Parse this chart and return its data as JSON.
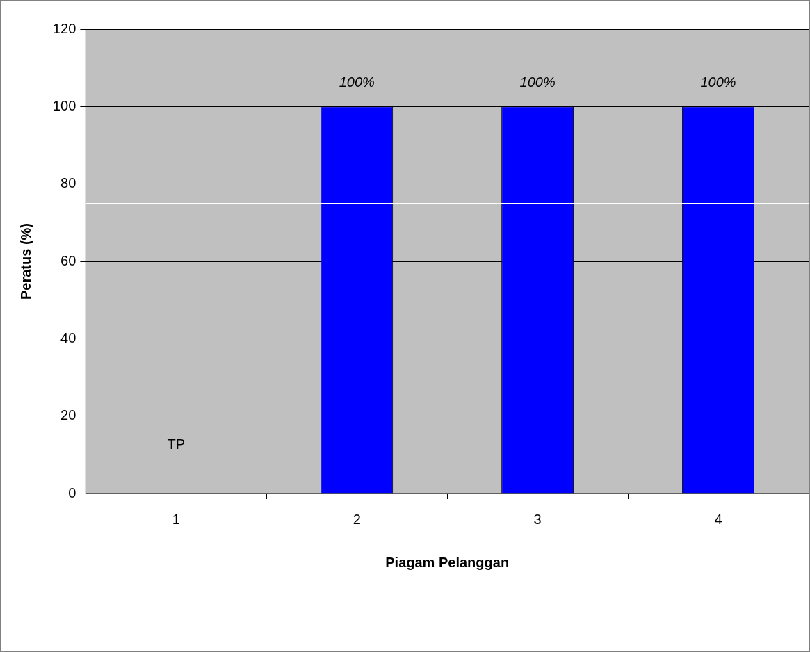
{
  "chart_data": {
    "type": "bar",
    "xlabel": "Piagam Pelanggan",
    "ylabel": "Peratus (%)",
    "categories": [
      "1",
      "2",
      "3",
      "4"
    ],
    "values": [
      null,
      100,
      100,
      100
    ],
    "value_labels": [
      "TP",
      "100%",
      "100%",
      "100%"
    ],
    "color": "#0000ff",
    "ylim": [
      0,
      120
    ],
    "yticks": [
      0,
      20,
      40,
      60,
      80,
      100,
      120
    ],
    "grid": "y",
    "legend": false,
    "ref_lines": [
      {
        "axis": "y",
        "value": 75,
        "color": "#ffffff"
      }
    ]
  }
}
